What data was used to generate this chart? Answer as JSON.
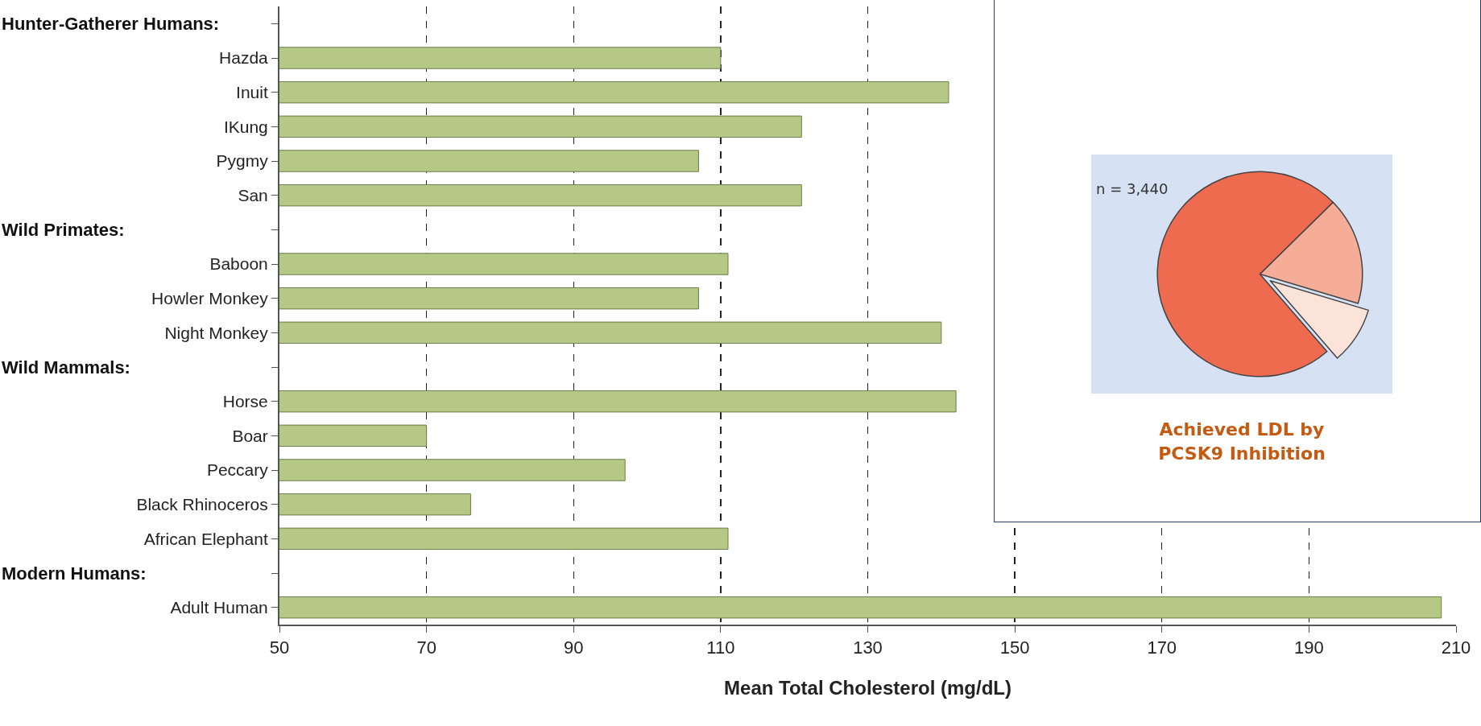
{
  "chart_data": [
    {
      "type": "bar",
      "orientation": "horizontal",
      "xlabel": "Mean Total Cholesterol (mg/dL)",
      "categories": [
        null,
        "Hazda",
        "Inuit",
        "IKung",
        "Pygmy",
        "San",
        null,
        "Baboon",
        "Howler Monkey",
        "Night Monkey",
        null,
        "Horse",
        "Boar",
        "Peccary",
        "Black Rhinoceros",
        "African Elephant",
        null,
        "Adult Human"
      ],
      "annotations": [
        "Hunter-Gatherer Humans:",
        "Wild Primates:",
        "Wild Mammals:",
        "Modern Humans:"
      ],
      "values": [
        null,
        110,
        141,
        121,
        107,
        121,
        null,
        111,
        107,
        140,
        null,
        142,
        70,
        97,
        76,
        111,
        null,
        208
      ],
      "color": "#b5c886",
      "xlim": [
        50,
        210
      ],
      "xticks": [
        50,
        70,
        90,
        110,
        130,
        150,
        170,
        190,
        210
      ],
      "grid": "x",
      "line_style": "dashed"
    },
    {
      "type": "pie",
      "title": "Achieved LDL by PCSK9 Inhibition",
      "annotations": [
        "n = 3,440"
      ],
      "categories": [
        null,
        null,
        null
      ],
      "values": [
        17,
        9,
        74
      ],
      "colors": [
        "#f5ad98",
        "#fbe3da",
        "#ef6b50"
      ]
    }
  ]
}
